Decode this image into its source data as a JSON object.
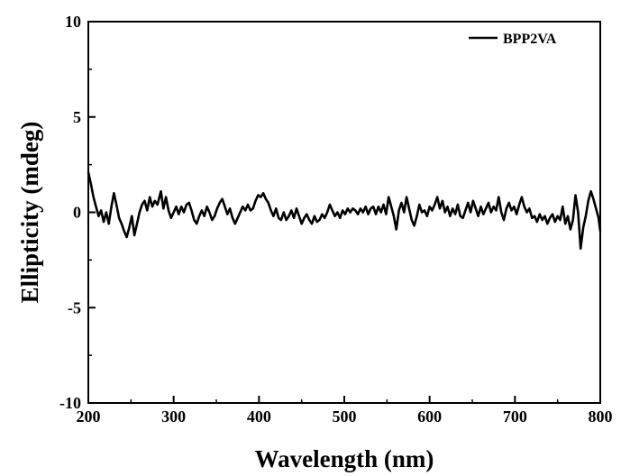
{
  "chart_data": {
    "type": "line",
    "xlabel": "Wavelength (nm)",
    "ylabel": "Ellipticity (mdeg)",
    "xlim": [
      200,
      800
    ],
    "ylim": [
      -10,
      10
    ],
    "xticks": [
      200,
      300,
      400,
      500,
      600,
      700,
      800
    ],
    "xtick_labels": [
      "200",
      "300",
      "400",
      "500",
      "600",
      "700",
      "800"
    ],
    "yticks": [
      -10,
      -5,
      0,
      5,
      10
    ],
    "ytick_labels": [
      "-10",
      "-5",
      "0",
      "5",
      "10"
    ],
    "grid": false,
    "legend_position": "top-right",
    "series": [
      {
        "name": "BPP2VA",
        "color": "#000000",
        "points": [
          [
            200,
            2.1
          ],
          [
            203,
            1.5
          ],
          [
            206,
            0.8
          ],
          [
            209,
            0.3
          ],
          [
            212,
            -0.2
          ],
          [
            215,
            0.1
          ],
          [
            218,
            -0.5
          ],
          [
            221,
            0.0
          ],
          [
            224,
            -0.6
          ],
          [
            227,
            0.3
          ],
          [
            230,
            1.0
          ],
          [
            233,
            0.4
          ],
          [
            236,
            -0.3
          ],
          [
            239,
            -0.6
          ],
          [
            242,
            -1.0
          ],
          [
            245,
            -1.3
          ],
          [
            248,
            -0.8
          ],
          [
            251,
            -0.2
          ],
          [
            254,
            -1.2
          ],
          [
            257,
            -0.6
          ],
          [
            260,
            0.0
          ],
          [
            263,
            0.4
          ],
          [
            266,
            0.6
          ],
          [
            269,
            0.1
          ],
          [
            272,
            0.8
          ],
          [
            275,
            0.3
          ],
          [
            278,
            0.6
          ],
          [
            281,
            0.4
          ],
          [
            285,
            1.1
          ],
          [
            288,
            0.2
          ],
          [
            291,
            0.8
          ],
          [
            294,
            0.1
          ],
          [
            297,
            -0.3
          ],
          [
            300,
            0.0
          ],
          [
            303,
            0.3
          ],
          [
            306,
            -0.1
          ],
          [
            309,
            0.3
          ],
          [
            312,
            0.0
          ],
          [
            315,
            0.4
          ],
          [
            318,
            0.5
          ],
          [
            321,
            0.1
          ],
          [
            324,
            -0.4
          ],
          [
            327,
            -0.6
          ],
          [
            330,
            -0.2
          ],
          [
            333,
            0.1
          ],
          [
            336,
            -0.2
          ],
          [
            339,
            0.3
          ],
          [
            342,
            0.0
          ],
          [
            345,
            -0.4
          ],
          [
            348,
            -0.2
          ],
          [
            351,
            0.2
          ],
          [
            354,
            0.5
          ],
          [
            357,
            0.7
          ],
          [
            360,
            0.3
          ],
          [
            363,
            -0.1
          ],
          [
            366,
            0.2
          ],
          [
            369,
            -0.3
          ],
          [
            372,
            -0.6
          ],
          [
            375,
            -0.3
          ],
          [
            378,
            0.0
          ],
          [
            381,
            0.3
          ],
          [
            384,
            0.1
          ],
          [
            387,
            0.4
          ],
          [
            390,
            0.1
          ],
          [
            393,
            0.2
          ],
          [
            396,
            0.6
          ],
          [
            399,
            0.9
          ],
          [
            402,
            0.8
          ],
          [
            405,
            1.0
          ],
          [
            408,
            0.7
          ],
          [
            411,
            0.5
          ],
          [
            414,
            0.1
          ],
          [
            417,
            -0.2
          ],
          [
            420,
            0.2
          ],
          [
            423,
            -0.3
          ],
          [
            426,
            -0.4
          ],
          [
            429,
            0.0
          ],
          [
            432,
            -0.4
          ],
          [
            435,
            -0.2
          ],
          [
            438,
            0.1
          ],
          [
            441,
            -0.3
          ],
          [
            444,
            0.2
          ],
          [
            447,
            -0.2
          ],
          [
            450,
            -0.6
          ],
          [
            453,
            -0.3
          ],
          [
            456,
            -0.1
          ],
          [
            459,
            -0.4
          ],
          [
            462,
            -0.6
          ],
          [
            465,
            -0.2
          ],
          [
            468,
            -0.5
          ],
          [
            471,
            -0.4
          ],
          [
            474,
            -0.1
          ],
          [
            477,
            -0.3
          ],
          [
            480,
            0.0
          ],
          [
            483,
            0.4
          ],
          [
            486,
            0.1
          ],
          [
            489,
            -0.2
          ],
          [
            492,
            0.0
          ],
          [
            495,
            -0.3
          ],
          [
            498,
            0.1
          ],
          [
            501,
            -0.1
          ],
          [
            504,
            0.2
          ],
          [
            507,
            0.0
          ],
          [
            510,
            0.2
          ],
          [
            513,
            0.1
          ],
          [
            516,
            -0.1
          ],
          [
            519,
            0.2
          ],
          [
            522,
            0.0
          ],
          [
            525,
            0.3
          ],
          [
            528,
            -0.1
          ],
          [
            531,
            0.2
          ],
          [
            534,
            0.3
          ],
          [
            537,
            -0.1
          ],
          [
            540,
            0.3
          ],
          [
            543,
            0.0
          ],
          [
            546,
            0.4
          ],
          [
            549,
            -0.1
          ],
          [
            552,
            0.8
          ],
          [
            555,
            0.3
          ],
          [
            558,
            -0.2
          ],
          [
            561,
            -0.9
          ],
          [
            564,
            0.1
          ],
          [
            567,
            0.5
          ],
          [
            570,
            0.0
          ],
          [
            573,
            0.8
          ],
          [
            576,
            0.2
          ],
          [
            579,
            -0.4
          ],
          [
            582,
            -0.7
          ],
          [
            585,
            -0.2
          ],
          [
            588,
            0.4
          ],
          [
            591,
            0.0
          ],
          [
            594,
            0.1
          ],
          [
            597,
            -0.2
          ],
          [
            600,
            0.3
          ],
          [
            603,
            0.1
          ],
          [
            606,
            0.4
          ],
          [
            609,
            0.8
          ],
          [
            612,
            0.2
          ],
          [
            615,
            0.6
          ],
          [
            618,
            0.0
          ],
          [
            621,
            0.3
          ],
          [
            624,
            -0.2
          ],
          [
            627,
            0.2
          ],
          [
            630,
            -0.1
          ],
          [
            633,
            0.4
          ],
          [
            636,
            -0.2
          ],
          [
            639,
            -0.3
          ],
          [
            642,
            0.1
          ],
          [
            645,
            0.5
          ],
          [
            648,
            0.0
          ],
          [
            651,
            0.6
          ],
          [
            654,
            0.2
          ],
          [
            657,
            -0.2
          ],
          [
            660,
            0.3
          ],
          [
            663,
            -0.1
          ],
          [
            666,
            0.2
          ],
          [
            669,
            0.5
          ],
          [
            672,
            0.0
          ],
          [
            675,
            0.3
          ],
          [
            678,
            0.1
          ],
          [
            681,
            0.8
          ],
          [
            684,
            0.0
          ],
          [
            687,
            -0.4
          ],
          [
            690,
            0.2
          ],
          [
            693,
            0.5
          ],
          [
            696,
            0.1
          ],
          [
            699,
            0.3
          ],
          [
            702,
            -0.1
          ],
          [
            705,
            0.4
          ],
          [
            708,
            0.8
          ],
          [
            711,
            0.3
          ],
          [
            714,
            0.0
          ],
          [
            717,
            0.2
          ],
          [
            720,
            -0.3
          ],
          [
            723,
            -0.2
          ],
          [
            726,
            -0.5
          ],
          [
            729,
            -0.1
          ],
          [
            732,
            -0.4
          ],
          [
            735,
            -0.2
          ],
          [
            738,
            -0.6
          ],
          [
            741,
            -0.3
          ],
          [
            744,
            -0.1
          ],
          [
            747,
            -0.5
          ],
          [
            750,
            -0.2
          ],
          [
            753,
            -0.4
          ],
          [
            756,
            0.3
          ],
          [
            759,
            -0.6
          ],
          [
            762,
            -0.2
          ],
          [
            765,
            -0.9
          ],
          [
            768,
            -0.4
          ],
          [
            771,
            0.9
          ],
          [
            774,
            0.0
          ],
          [
            777,
            -1.9
          ],
          [
            780,
            -0.8
          ],
          [
            783,
            -0.2
          ],
          [
            786,
            0.6
          ],
          [
            789,
            1.1
          ],
          [
            792,
            0.7
          ],
          [
            795,
            0.2
          ],
          [
            798,
            -0.3
          ],
          [
            800,
            -1.0
          ]
        ]
      }
    ]
  }
}
